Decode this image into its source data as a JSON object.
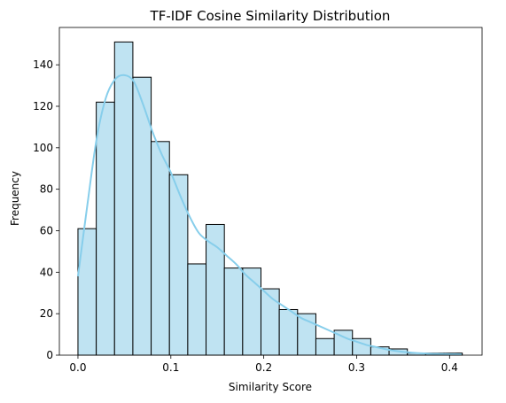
{
  "chart_data": {
    "type": "bar",
    "subtype": "histogram",
    "title": "TF-IDF Cosine Similarity Distribution",
    "xlabel": "Similarity Score",
    "ylabel": "Frequency",
    "xlim": [
      -0.02,
      0.435
    ],
    "ylim": [
      0,
      158
    ],
    "xticks": [
      0.0,
      0.1,
      0.2,
      0.3,
      0.4
    ],
    "xtick_labels": [
      "0.0",
      "0.1",
      "0.2",
      "0.3",
      "0.4"
    ],
    "yticks": [
      0,
      20,
      40,
      60,
      80,
      100,
      120,
      140
    ],
    "ytick_labels": [
      "0",
      "20",
      "40",
      "60",
      "80",
      "100",
      "120",
      "140"
    ],
    "grid": false,
    "bin_edges": [
      0.0,
      0.0197,
      0.0394,
      0.0591,
      0.0788,
      0.0985,
      0.1182,
      0.1379,
      0.1576,
      0.1773,
      0.197,
      0.2167,
      0.2364,
      0.2561,
      0.2758,
      0.2955,
      0.3152,
      0.3349,
      0.3546,
      0.3743,
      0.394,
      0.4137
    ],
    "values": [
      61,
      122,
      151,
      134,
      103,
      87,
      44,
      63,
      42,
      42,
      32,
      22,
      20,
      8,
      12,
      8,
      4,
      3,
      1,
      1,
      1
    ],
    "kde": {
      "x": [
        0.0,
        0.01,
        0.02,
        0.03,
        0.04,
        0.05,
        0.06,
        0.07,
        0.08,
        0.09,
        0.1,
        0.11,
        0.12,
        0.13,
        0.14,
        0.15,
        0.16,
        0.17,
        0.18,
        0.19,
        0.2,
        0.21,
        0.22,
        0.23,
        0.24,
        0.25,
        0.26,
        0.27,
        0.28,
        0.29,
        0.3,
        0.31,
        0.32,
        0.33,
        0.34,
        0.35,
        0.36,
        0.37,
        0.38,
        0.39,
        0.4,
        0.413
      ],
      "y": [
        38,
        72,
        104,
        124,
        133,
        135,
        132,
        121,
        108,
        97,
        88,
        77,
        67,
        59,
        55,
        52,
        48,
        44,
        39,
        35,
        31,
        27,
        24,
        21,
        18,
        16,
        14,
        12,
        10,
        8,
        6.5,
        5,
        4,
        3,
        2.2,
        1.6,
        1.2,
        0.9,
        0.7,
        0.6,
        0.5,
        0.4
      ]
    },
    "bar_color": "#bfe3f2",
    "kde_color": "#87ceeb"
  }
}
